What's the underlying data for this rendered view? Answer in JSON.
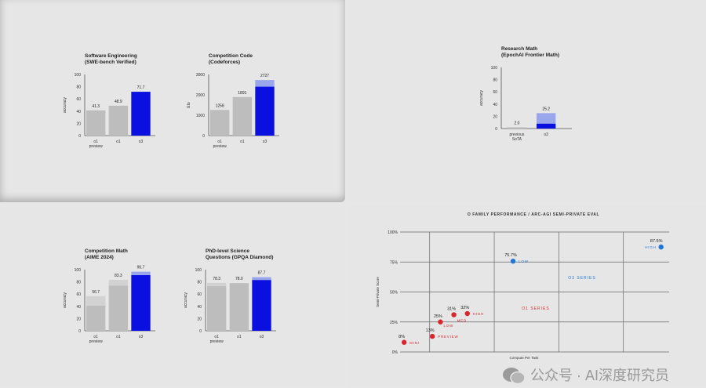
{
  "chart_data": [
    {
      "type": "bar",
      "title": [
        "Software Engineering",
        "(SWE-bench Verified)"
      ],
      "ylabel": "accuracy",
      "ylim": [
        0,
        100
      ],
      "yticks": [
        0,
        20,
        40,
        60,
        80,
        100
      ],
      "categories": [
        [
          "o1",
          "preview"
        ],
        [
          "o1"
        ],
        [
          "o3"
        ]
      ],
      "values": [
        41.3,
        48.9,
        71.7
      ],
      "base_values": [
        41.3,
        48.9,
        71.7
      ],
      "labels": [
        "41.3",
        "48.9",
        "71.7"
      ]
    },
    {
      "type": "bar",
      "title": [
        "Competition Code",
        "(Codeforces)"
      ],
      "ylabel": "Elo",
      "ylim": [
        0,
        3000
      ],
      "yticks": [
        0,
        1000,
        2000,
        3000
      ],
      "categories": [
        [
          "o1",
          "preview"
        ],
        [
          "o1"
        ],
        [
          "o3"
        ]
      ],
      "values": [
        1258,
        1891,
        2727
      ],
      "base_values": [
        1258,
        1891,
        2400
      ],
      "labels": [
        "1258",
        "1891",
        "2727"
      ]
    },
    {
      "type": "bar",
      "title": [
        "Research Math",
        "(EpochAI Frontier Math)"
      ],
      "ylabel": "accuracy",
      "ylim": [
        0,
        100
      ],
      "yticks": [
        0,
        20,
        40,
        60,
        80,
        100
      ],
      "categories": [
        [
          "previous",
          "SoTA"
        ],
        [
          "o3"
        ]
      ],
      "values": [
        2.0,
        25.2
      ],
      "base_values": [
        2.0,
        8
      ],
      "labels": [
        "2.0",
        "25.2"
      ]
    },
    {
      "type": "bar",
      "title": [
        "Competition Math",
        "(AIME 2024)"
      ],
      "ylabel": "accuracy",
      "ylim": [
        0,
        100
      ],
      "yticks": [
        0,
        20,
        40,
        60,
        80,
        100
      ],
      "categories": [
        [
          "o1",
          "preview"
        ],
        [
          "o1"
        ],
        [
          "o3"
        ]
      ],
      "values": [
        56.7,
        83.3,
        96.7
      ],
      "base_values": [
        41,
        74,
        91
      ],
      "labels": [
        "56.7",
        "83.3",
        "96.7"
      ]
    },
    {
      "type": "bar",
      "title": [
        "PhD-level Science",
        "Questions (GPQA Diamond)"
      ],
      "ylabel": "accuracy",
      "ylim": [
        0,
        100
      ],
      "yticks": [
        0,
        20,
        40,
        60,
        80,
        100
      ],
      "categories": [
        [
          "o1",
          "preview"
        ],
        [
          "o1"
        ],
        [
          "o3"
        ]
      ],
      "values": [
        78.3,
        78.0,
        87.7
      ],
      "base_values": [
        73,
        78.0,
        83
      ],
      "labels": [
        "78.3",
        "78.0",
        "87.7"
      ]
    },
    {
      "type": "scatter",
      "title": "O FAMILY PERFORMANCE / ARC-AGI SEMI-PRIVATE EVAL",
      "xlabel": "Compute Per Task",
      "ylabel": "Semi-Private Score",
      "ylim": [
        0,
        100
      ],
      "yticks": [
        "0%",
        "25%",
        "50%",
        "75%",
        "100%"
      ],
      "xlim": [
        0,
        10
      ],
      "xgrid": [
        1.1,
        3.5,
        5.9,
        8.3
      ],
      "series": [
        {
          "name": "O1 SERIES",
          "color": "#d9262e",
          "points": [
            {
              "x": 0.15,
              "y": 8,
              "value": "8%",
              "label": "MINI"
            },
            {
              "x": 1.2,
              "y": 13,
              "value": "13%",
              "label": "PREVIEW"
            },
            {
              "x": 1.5,
              "y": 25,
              "value": "25%",
              "label": "LOW"
            },
            {
              "x": 2.0,
              "y": 31,
              "value": "31%",
              "label": "MED"
            },
            {
              "x": 2.5,
              "y": 32,
              "value": "32%",
              "label": "HIGH"
            }
          ]
        },
        {
          "name": "O3 SERIES",
          "color": "#1f77d8",
          "points": [
            {
              "x": 4.2,
              "y": 75.7,
              "value": "75.7%",
              "label": "LOW"
            },
            {
              "x": 9.7,
              "y": 87.5,
              "value": "87.5%",
              "label": "HIGH"
            }
          ]
        }
      ]
    }
  ],
  "colors": {
    "gray": "#bdbdbd",
    "gray_light": "#d2d2d2",
    "blue": "#0a10e0",
    "blue_light": "#9aa6ec",
    "red": "#d9262e",
    "o3blue": "#1f77d8"
  },
  "watermark": "公众号 · AI深度研究员"
}
